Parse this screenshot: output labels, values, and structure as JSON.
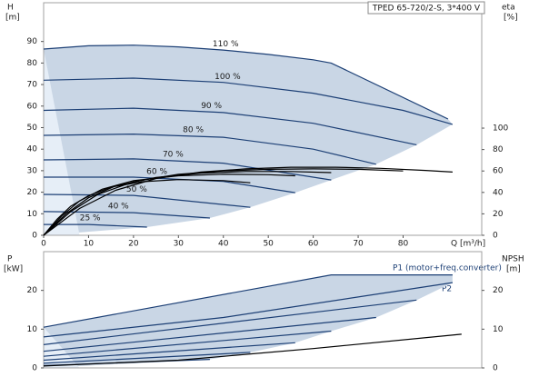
{
  "chart_data": [
    {
      "type": "line",
      "title": "TPED 65-720/2-S, 3*400 V",
      "ylabel": "H",
      "yunit": "[m]",
      "y2label": "eta",
      "y2unit": "[%]",
      "xlabel": "Q [m³/h]",
      "xlim": [
        0,
        97.5
      ],
      "xticks": [
        0,
        10,
        20,
        30,
        40,
        50,
        60,
        70,
        80
      ],
      "ylim": [
        0,
        108
      ],
      "yticks": [
        0,
        10,
        20,
        30,
        40,
        50,
        60,
        70,
        80,
        90
      ],
      "y2lim": [
        0,
        217
      ],
      "y2ticks": [
        0,
        20,
        40,
        60,
        80,
        100
      ],
      "series": [
        {
          "name": "110 %",
          "color": "#1c3f75",
          "x": [
            0,
            10,
            20,
            30,
            40,
            50,
            60,
            64,
            90
          ],
          "values": [
            86.5,
            88,
            88.3,
            87.5,
            86,
            84,
            81.5,
            80,
            54
          ]
        },
        {
          "name": "100 %",
          "color": "#1c3f75",
          "x": [
            0,
            20,
            40,
            60,
            80,
            91
          ],
          "values": [
            72,
            73,
            71,
            66,
            58,
            51.5
          ]
        },
        {
          "name": "90 %",
          "color": "#1c3f75",
          "x": [
            0,
            20,
            40,
            60,
            83
          ],
          "values": [
            58,
            59,
            57,
            52,
            42
          ]
        },
        {
          "name": "80 %",
          "color": "#1c3f75",
          "x": [
            0,
            20,
            40,
            60,
            74
          ],
          "values": [
            46.4,
            47,
            45.5,
            40,
            33
          ]
        },
        {
          "name": "70 %",
          "color": "#1c3f75",
          "x": [
            0,
            20,
            40,
            64
          ],
          "values": [
            35,
            35.5,
            33.5,
            25.7
          ]
        },
        {
          "name": "60 %",
          "color": "#1c3f75",
          "x": [
            0,
            20,
            40,
            56
          ],
          "values": [
            27,
            27,
            25,
            19.8
          ]
        },
        {
          "name": "50 %",
          "color": "#1c3f75",
          "x": [
            0,
            20,
            46
          ],
          "values": [
            19,
            18.5,
            13
          ]
        },
        {
          "name": "40 %",
          "color": "#1c3f75",
          "x": [
            0,
            20,
            37
          ],
          "values": [
            11,
            10.5,
            8
          ]
        },
        {
          "name": "25 %",
          "color": "#1c3f75",
          "x": [
            0,
            10,
            23
          ],
          "values": [
            5,
            5,
            3.8
          ]
        },
        {
          "axis": "y2",
          "color": "#000000",
          "x": [
            0,
            8,
            16,
            25,
            35,
            45,
            55,
            65,
            75,
            85,
            91
          ],
          "values": [
            0,
            25,
            42,
            53,
            59,
            62,
            63.5,
            63.5,
            62.5,
            60.5,
            59
          ]
        },
        {
          "axis": "y2",
          "color": "#000000",
          "x": [
            0,
            6,
            12,
            20,
            30,
            40,
            50,
            60,
            70,
            80
          ],
          "values": [
            0,
            22,
            38,
            50,
            57,
            60,
            61.5,
            62,
            61.5,
            60
          ]
        },
        {
          "axis": "y2",
          "color": "#000000",
          "x": [
            0,
            5,
            10,
            16,
            25,
            35,
            45,
            55,
            64
          ],
          "values": [
            0,
            20,
            35,
            46,
            54,
            58,
            59.5,
            59.5,
            58.5
          ]
        },
        {
          "axis": "y2",
          "color": "#000000",
          "x": [
            0,
            4,
            8,
            13,
            20,
            30,
            40,
            50,
            56
          ],
          "values": [
            0,
            18,
            32,
            43,
            51,
            55.5,
            57,
            56.5,
            55.5
          ]
        },
        {
          "axis": "y2",
          "color": "#000000",
          "x": [
            0,
            3,
            6,
            10,
            15,
            22,
            30,
            40,
            46
          ],
          "values": [
            0,
            15,
            27,
            37,
            45,
            50,
            52,
            51,
            49
          ]
        }
      ]
    },
    {
      "type": "line",
      "ylabel": "P",
      "yunit": "[kW]",
      "y2label": "NPSH",
      "y2unit": "[m]",
      "annotations": [
        "P1 (motor+freq.converter)",
        "P2"
      ],
      "xlim": [
        0,
        97.5
      ],
      "ylim": [
        0,
        30
      ],
      "yticks": [
        0,
        10,
        20
      ],
      "y2lim": [
        0,
        30
      ],
      "y2ticks": [
        0,
        10,
        20
      ],
      "series": [
        {
          "color": "#1c3f75",
          "x": [
            0,
            64,
            91
          ],
          "values": [
            10.5,
            24,
            24
          ]
        },
        {
          "color": "#1c3f75",
          "x": [
            0,
            40,
            91
          ],
          "values": [
            8,
            13,
            22
          ]
        },
        {
          "color": "#1c3f75",
          "x": [
            0,
            83
          ],
          "values": [
            6,
            17.5
          ]
        },
        {
          "color": "#1c3f75",
          "x": [
            0,
            74
          ],
          "values": [
            4.3,
            13
          ]
        },
        {
          "color": "#1c3f75",
          "x": [
            0,
            64
          ],
          "values": [
            3,
            9.5
          ]
        },
        {
          "color": "#1c3f75",
          "x": [
            0,
            56
          ],
          "values": [
            2,
            6.5
          ]
        },
        {
          "color": "#1c3f75",
          "x": [
            0,
            46
          ],
          "values": [
            1.2,
            4
          ]
        },
        {
          "color": "#1c3f75",
          "x": [
            0,
            37
          ],
          "values": [
            0.6,
            2.2
          ]
        },
        {
          "axis": "y2",
          "color": "#000000",
          "x": [
            0,
            30,
            60,
            93
          ],
          "values": [
            0.5,
            2,
            5,
            8.7
          ]
        }
      ]
    }
  ]
}
